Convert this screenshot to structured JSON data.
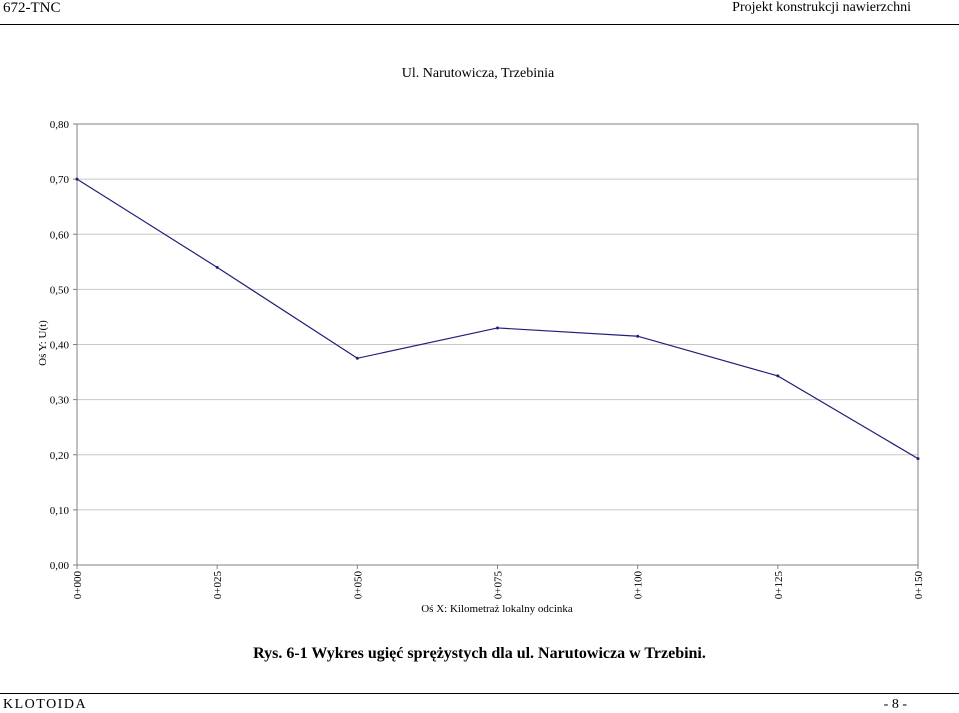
{
  "header": {
    "left": "672-TNC",
    "right": "Projekt konstrukcji nawierzchni"
  },
  "footer": {
    "left": "KLOTOIDA",
    "right": "- 8 -"
  },
  "caption": "Rys. 6-1 Wykres ugięć sprężystych dla ul. Narutowicza w Trzebini.",
  "colors": {
    "series": "#1f1f7a",
    "grid": "#c8c8c8",
    "axis": "#808080"
  },
  "chart_data": {
    "type": "line",
    "title": "Ul. Narutowicza, Trzebinia",
    "xlabel": "Oś X: Kilometraż lokalny odcinka",
    "ylabel": "Oś Y: U(t)",
    "categories": [
      "0+000",
      "0+025",
      "0+050",
      "0+075",
      "0+100",
      "0+125",
      "0+150"
    ],
    "series": [
      {
        "values": [
          0.7,
          0.54,
          0.375,
          0.43,
          0.415,
          0.343,
          0.193
        ]
      }
    ],
    "ylim": [
      0,
      0.8
    ],
    "yticks": [
      "0,00",
      "0,10",
      "0,20",
      "0,30",
      "0,40",
      "0,50",
      "0,60",
      "0,70",
      "0,80"
    ],
    "grid": true,
    "legend": "none"
  }
}
